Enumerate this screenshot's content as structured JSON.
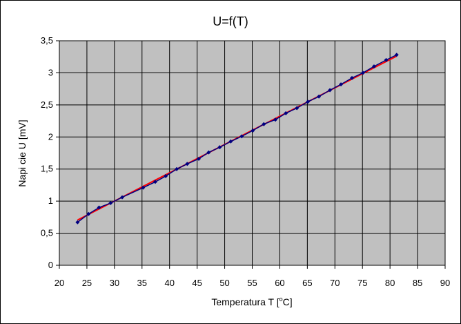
{
  "chart_data": {
    "type": "scatter",
    "title": "U=f(T)",
    "xlabel": {
      "prefix": "Temperatura T [",
      "sup": "o",
      "suffix": "C]"
    },
    "ylabel": "Napi cie U [mV]",
    "xlim": [
      20,
      90
    ],
    "ylim": [
      0,
      3.5
    ],
    "xticks": [
      20,
      25,
      30,
      35,
      40,
      45,
      50,
      55,
      60,
      65,
      70,
      75,
      80,
      85,
      90
    ],
    "yticks": [
      0,
      0.5,
      1,
      1.5,
      2,
      2.5,
      3,
      3.5
    ],
    "ytick_labels": [
      "0",
      "0,5",
      "1",
      "1,5",
      "2",
      "2,5",
      "3",
      "3,5"
    ],
    "grid": true,
    "legend": false,
    "series": [
      {
        "color": "#000080",
        "marker": "diamond",
        "line": true,
        "x": [
          23.3,
          25.3,
          27.2,
          29.3,
          31.4,
          35.2,
          37.4,
          39.3,
          41.3,
          43.2,
          45.3,
          47.1,
          49.1,
          51.1,
          53.1,
          55.1,
          57.1,
          59.2,
          61.1,
          63.1,
          65.1,
          67.1,
          69.1,
          71.1,
          73.1,
          75.1,
          77.1,
          79.3,
          81.2
        ],
        "y": [
          0.67,
          0.8,
          0.9,
          0.97,
          1.06,
          1.21,
          1.3,
          1.39,
          1.5,
          1.58,
          1.66,
          1.76,
          1.84,
          1.93,
          2.01,
          2.1,
          2.2,
          2.27,
          2.37,
          2.45,
          2.55,
          2.63,
          2.73,
          2.82,
          2.92,
          3.0,
          3.1,
          3.2,
          3.28
        ]
      }
    ],
    "trendline": {
      "color": "#ff0000",
      "x": [
        23.3,
        81.2
      ],
      "y": [
        0.705,
        3.26
      ]
    }
  },
  "colors": {
    "plot_background": "#c0c0c0",
    "grid": "#000000"
  }
}
